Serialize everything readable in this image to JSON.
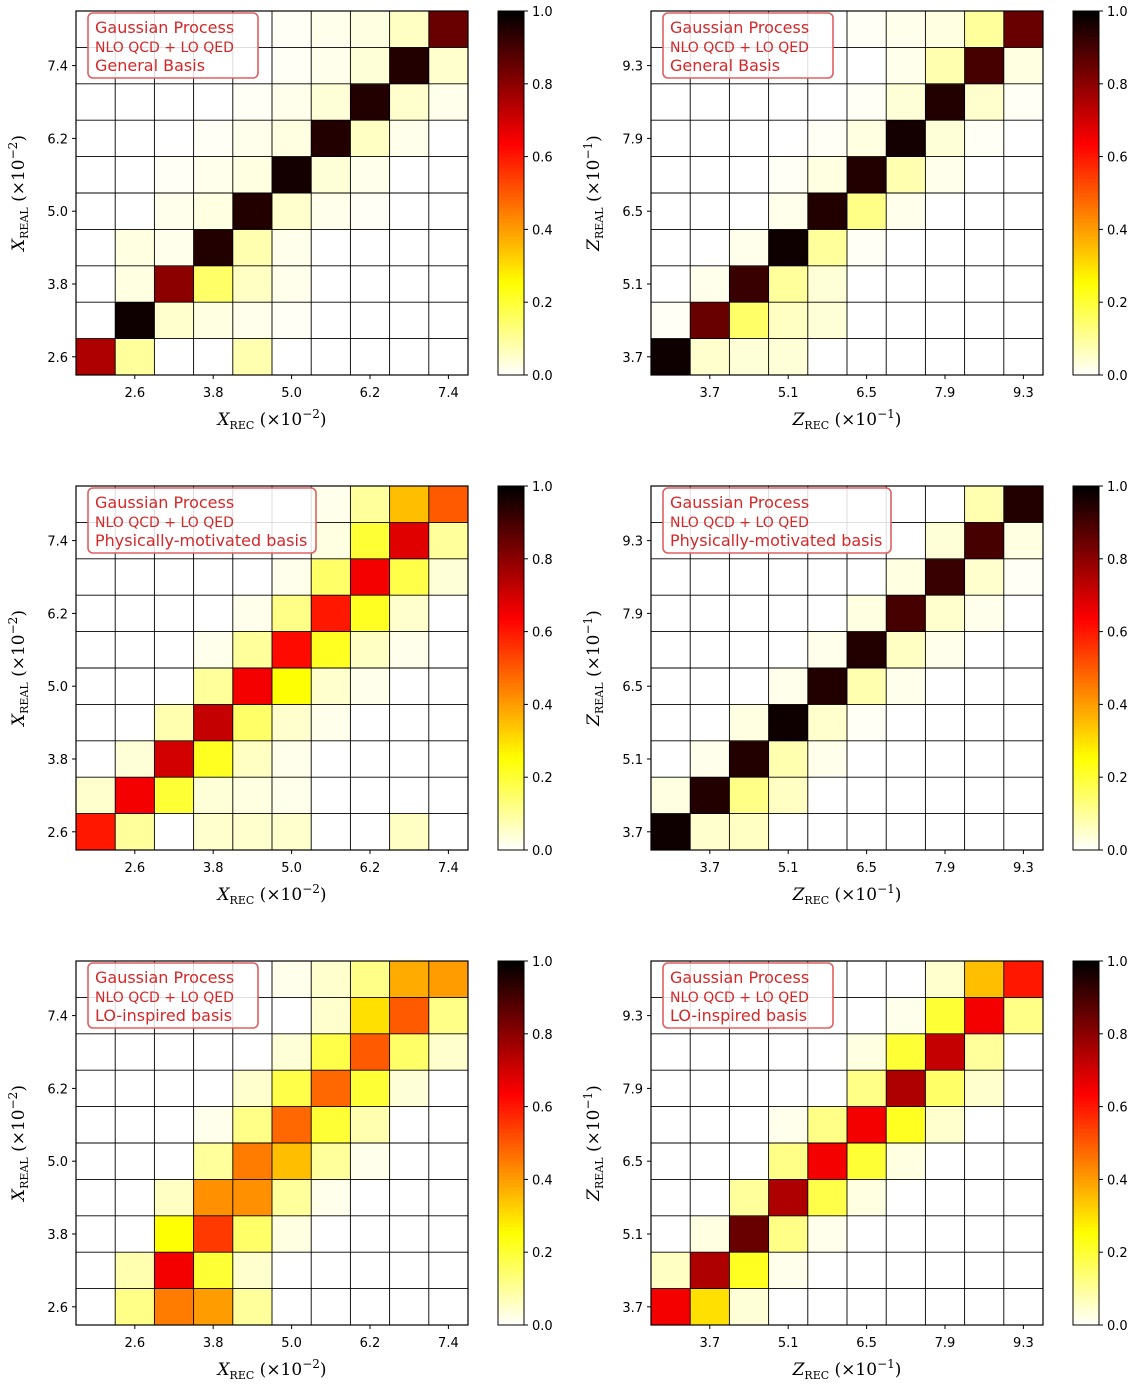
{
  "colorbar": {
    "ticks": [
      "0.0",
      "0.2",
      "0.4",
      "0.6",
      "0.8",
      "1.0"
    ],
    "tick_values": [
      0,
      0.2,
      0.4,
      0.6,
      0.8,
      1.0
    ],
    "colormap": "hot_r"
  },
  "legend_common": {
    "line1": "Gaussian Process",
    "line2": "NLO QCD + LO QED",
    "color": "#d62728"
  },
  "chart_data": [
    {
      "type": "heatmap",
      "basis": "General Basis",
      "variable": "X",
      "xlabel": {
        "main": "X",
        "sub": "REC",
        "unit": "(×10",
        "exp": "−2",
        "close": ")"
      },
      "ylabel": {
        "main": "X",
        "sub": "REAL",
        "unit": "(×10",
        "exp": "−2",
        "close": ")"
      },
      "xticks": [
        "2.6",
        "3.8",
        "5.0",
        "6.2",
        "7.4"
      ],
      "yticks": [
        "2.6",
        "3.8",
        "5.0",
        "6.2",
        "7.4"
      ],
      "rows_bottom_to_top": [
        [
          0.75,
          0.1,
          0,
          0,
          0.08,
          0,
          0,
          0,
          0,
          0
        ],
        [
          0,
          0.98,
          0.05,
          0.03,
          0.02,
          0.01,
          0,
          0,
          0,
          0
        ],
        [
          0,
          0.03,
          0.8,
          0.15,
          0.06,
          0.02,
          0,
          0,
          0,
          0
        ],
        [
          0,
          0.03,
          0.02,
          0.95,
          0.08,
          0.02,
          0,
          0,
          0,
          0
        ],
        [
          0,
          0,
          0.02,
          0.03,
          0.95,
          0.05,
          0.02,
          0.01,
          0,
          0
        ],
        [
          0,
          0,
          0.01,
          0.02,
          0.03,
          0.97,
          0.04,
          0.02,
          0,
          0
        ],
        [
          0,
          0,
          0,
          0.01,
          0.02,
          0.03,
          0.95,
          0.06,
          0.02,
          0
        ],
        [
          0,
          0,
          0,
          0,
          0.01,
          0.02,
          0.04,
          0.95,
          0.05,
          0.02
        ],
        [
          0,
          0,
          0,
          0,
          0,
          0.01,
          0.02,
          0.04,
          0.95,
          0.05
        ],
        [
          0,
          0,
          0,
          0,
          0,
          0.01,
          0.02,
          0.03,
          0.06,
          0.85
        ]
      ]
    },
    {
      "type": "heatmap",
      "basis": "General Basis",
      "variable": "Z",
      "xlabel": {
        "main": "Z",
        "sub": "REC",
        "unit": "(×10",
        "exp": "−1",
        "close": ")"
      },
      "ylabel": {
        "main": "Z",
        "sub": "REAL",
        "unit": "(×10",
        "exp": "−1",
        "close": ")"
      },
      "xticks": [
        "3.7",
        "5.1",
        "6.5",
        "7.9",
        "9.3"
      ],
      "yticks": [
        "3.7",
        "5.1",
        "6.5",
        "7.9",
        "9.3"
      ],
      "rows_bottom_to_top": [
        [
          0.98,
          0.05,
          0.04,
          0.04,
          0,
          0,
          0,
          0,
          0,
          0
        ],
        [
          0.01,
          0.85,
          0.15,
          0.06,
          0.04,
          0,
          0,
          0,
          0,
          0
        ],
        [
          0,
          0.02,
          0.92,
          0.1,
          0.04,
          0,
          0,
          0,
          0,
          0
        ],
        [
          0,
          0,
          0.02,
          0.98,
          0.1,
          0.01,
          0,
          0,
          0,
          0
        ],
        [
          0,
          0,
          0,
          0.02,
          0.95,
          0.12,
          0.02,
          0,
          0,
          0
        ],
        [
          0,
          0,
          0,
          0.01,
          0.03,
          0.95,
          0.08,
          0.02,
          0,
          0
        ],
        [
          0,
          0,
          0,
          0,
          0.01,
          0.03,
          0.97,
          0.04,
          0.01,
          0
        ],
        [
          0,
          0,
          0,
          0,
          0,
          0.01,
          0.04,
          0.95,
          0.05,
          0.01
        ],
        [
          0,
          0,
          0,
          0,
          0,
          0,
          0.02,
          0.08,
          0.9,
          0.03
        ],
        [
          0,
          0,
          0,
          0,
          0,
          0.01,
          0.02,
          0.03,
          0.1,
          0.85
        ]
      ]
    },
    {
      "type": "heatmap",
      "basis": "Physically-motivated basis",
      "variable": "X",
      "xlabel": {
        "main": "X",
        "sub": "REC",
        "unit": "(×10",
        "exp": "−2",
        "close": ")"
      },
      "ylabel": {
        "main": "X",
        "sub": "REAL",
        "unit": "(×10",
        "exp": "−2",
        "close": ")"
      },
      "xticks": [
        "2.6",
        "3.8",
        "5.0",
        "6.2",
        "7.4"
      ],
      "yticks": [
        "2.6",
        "3.8",
        "5.0",
        "6.2",
        "7.4"
      ],
      "rows_bottom_to_top": [
        [
          0.6,
          0.1,
          0,
          0.05,
          0.05,
          0.05,
          0,
          0,
          0.06,
          0
        ],
        [
          0.05,
          0.65,
          0.2,
          0.04,
          0.03,
          0.02,
          0,
          0,
          0,
          0
        ],
        [
          0,
          0.04,
          0.7,
          0.22,
          0.06,
          0.02,
          0,
          0,
          0,
          0
        ],
        [
          0,
          0,
          0.08,
          0.72,
          0.15,
          0.05,
          0.02,
          0,
          0,
          0
        ],
        [
          0,
          0,
          0,
          0.1,
          0.65,
          0.25,
          0.05,
          0.02,
          0,
          0
        ],
        [
          0,
          0,
          0,
          0.02,
          0.1,
          0.62,
          0.22,
          0.06,
          0.02,
          0
        ],
        [
          0,
          0,
          0,
          0,
          0.02,
          0.12,
          0.6,
          0.22,
          0.05,
          0
        ],
        [
          0,
          0,
          0,
          0,
          0,
          0.02,
          0.15,
          0.65,
          0.18,
          0.04
        ],
        [
          0,
          0,
          0,
          0,
          0,
          0,
          0.03,
          0.2,
          0.68,
          0.1
        ],
        [
          0,
          0,
          0,
          0,
          0,
          0,
          0.02,
          0.1,
          0.35,
          0.5
        ]
      ]
    },
    {
      "type": "heatmap",
      "basis": "Physically-motivated basis",
      "variable": "Z",
      "xlabel": {
        "main": "Z",
        "sub": "REC",
        "unit": "(×10",
        "exp": "−1",
        "close": ")"
      },
      "ylabel": {
        "main": "Z",
        "sub": "REAL",
        "unit": "(×10",
        "exp": "−1",
        "close": ")"
      },
      "xticks": [
        "3.7",
        "5.1",
        "6.5",
        "7.9",
        "9.3"
      ],
      "yticks": [
        "3.7",
        "5.1",
        "6.5",
        "7.9",
        "9.3"
      ],
      "rows_bottom_to_top": [
        [
          0.98,
          0.05,
          0.06,
          0,
          0,
          0,
          0,
          0,
          0,
          0
        ],
        [
          0.03,
          0.95,
          0.12,
          0.06,
          0,
          0,
          0,
          0,
          0,
          0
        ],
        [
          0,
          0.02,
          0.95,
          0.08,
          0.02,
          0,
          0,
          0,
          0,
          0
        ],
        [
          0,
          0,
          0.03,
          0.98,
          0.05,
          0.01,
          0,
          0,
          0,
          0
        ],
        [
          0,
          0,
          0,
          0.02,
          0.95,
          0.08,
          0.02,
          0,
          0,
          0
        ],
        [
          0,
          0,
          0,
          0,
          0.02,
          0.95,
          0.06,
          0.02,
          0,
          0
        ],
        [
          0,
          0,
          0,
          0,
          0,
          0.03,
          0.9,
          0.05,
          0.02,
          0
        ],
        [
          0,
          0,
          0,
          0,
          0,
          0,
          0.03,
          0.92,
          0.05,
          0.01
        ],
        [
          0,
          0,
          0,
          0,
          0,
          0,
          0,
          0.04,
          0.9,
          0.03
        ],
        [
          0,
          0,
          0,
          0,
          0,
          0,
          0,
          0,
          0.08,
          0.95
        ]
      ]
    },
    {
      "type": "heatmap",
      "basis": "LO-inspired basis",
      "variable": "X",
      "xlabel": {
        "main": "X",
        "sub": "REC",
        "unit": "(×10",
        "exp": "−2",
        "close": ")"
      },
      "ylabel": {
        "main": "X",
        "sub": "REAL",
        "unit": "(×10",
        "exp": "−2",
        "close": ")"
      },
      "xticks": [
        "2.6",
        "3.8",
        "5.0",
        "6.2",
        "7.4"
      ],
      "yticks": [
        "2.6",
        "3.8",
        "5.0",
        "6.2",
        "7.4"
      ],
      "rows_bottom_to_top": [
        [
          0,
          0.12,
          0.45,
          0.4,
          0.1,
          0,
          0,
          0,
          0,
          0
        ],
        [
          0,
          0.08,
          0.65,
          0.2,
          0.05,
          0,
          0,
          0,
          0,
          0
        ],
        [
          0,
          0,
          0.25,
          0.55,
          0.15,
          0.03,
          0,
          0,
          0,
          0
        ],
        [
          0,
          0,
          0.06,
          0.42,
          0.42,
          0.1,
          0.02,
          0,
          0,
          0
        ],
        [
          0,
          0,
          0,
          0.1,
          0.45,
          0.35,
          0.1,
          0.02,
          0,
          0
        ],
        [
          0,
          0,
          0,
          0.02,
          0.12,
          0.48,
          0.2,
          0.08,
          0,
          0
        ],
        [
          0,
          0,
          0,
          0,
          0.05,
          0.18,
          0.48,
          0.2,
          0.04,
          0
        ],
        [
          0,
          0,
          0,
          0,
          0,
          0.04,
          0.18,
          0.5,
          0.15,
          0.05
        ],
        [
          0,
          0,
          0,
          0,
          0,
          0,
          0.05,
          0.3,
          0.5,
          0.12
        ],
        [
          0,
          0,
          0,
          0,
          0,
          0.02,
          0.05,
          0.12,
          0.38,
          0.4
        ]
      ]
    },
    {
      "type": "heatmap",
      "basis": "LO-inspired basis",
      "variable": "Z",
      "xlabel": {
        "main": "Z",
        "sub": "REC",
        "unit": "(×10",
        "exp": "−1",
        "close": ")"
      },
      "ylabel": {
        "main": "Z",
        "sub": "REAL",
        "unit": "(×10",
        "exp": "−1",
        "close": ")"
      },
      "xticks": [
        "3.7",
        "5.1",
        "6.5",
        "7.9",
        "9.3"
      ],
      "yticks": [
        "3.7",
        "5.1",
        "6.5",
        "7.9",
        "9.3"
      ],
      "rows_bottom_to_top": [
        [
          0.65,
          0.3,
          0.04,
          0,
          0,
          0,
          0,
          0,
          0,
          0
        ],
        [
          0.06,
          0.75,
          0.22,
          0.02,
          0,
          0,
          0,
          0,
          0,
          0
        ],
        [
          0,
          0.03,
          0.85,
          0.12,
          0.02,
          0,
          0,
          0,
          0,
          0
        ],
        [
          0,
          0,
          0.1,
          0.75,
          0.18,
          0.03,
          0,
          0,
          0,
          0
        ],
        [
          0,
          0,
          0,
          0.12,
          0.65,
          0.2,
          0.03,
          0,
          0,
          0
        ],
        [
          0,
          0,
          0,
          0.02,
          0.12,
          0.65,
          0.22,
          0.05,
          0,
          0
        ],
        [
          0,
          0,
          0,
          0,
          0,
          0.12,
          0.75,
          0.15,
          0.05,
          0
        ],
        [
          0,
          0,
          0,
          0,
          0,
          0.03,
          0.2,
          0.72,
          0.1,
          0
        ],
        [
          0,
          0,
          0,
          0,
          0,
          0,
          0.02,
          0.2,
          0.65,
          0.12
        ],
        [
          0,
          0,
          0,
          0,
          0,
          0,
          0,
          0.05,
          0.35,
          0.6
        ]
      ]
    }
  ]
}
